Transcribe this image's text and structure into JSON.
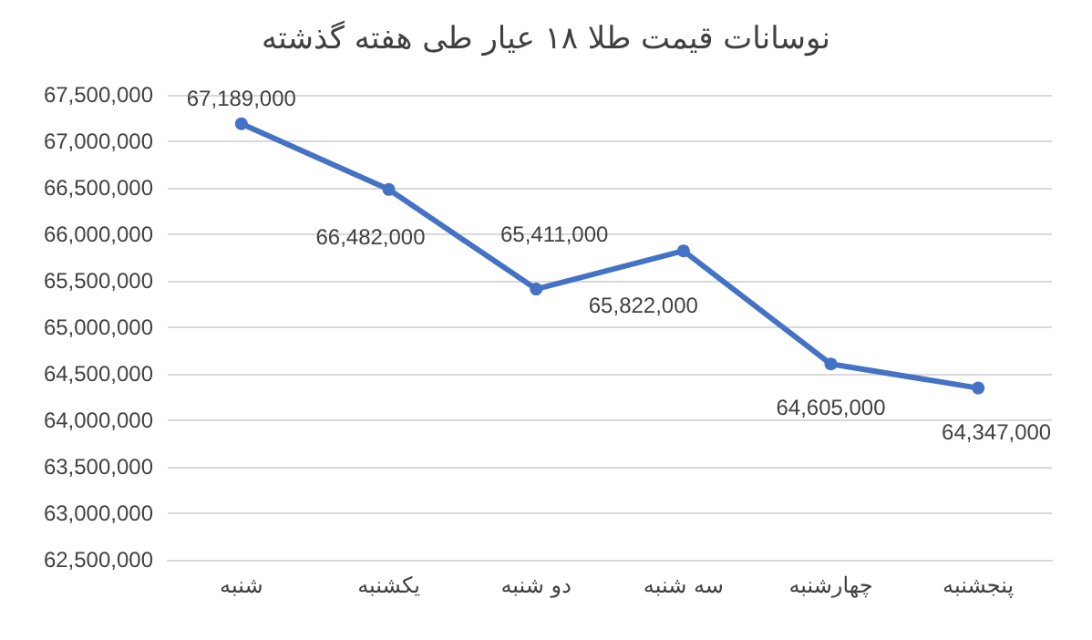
{
  "chart_data": {
    "type": "line",
    "title": "نوسانات قیمت طلا ۱۸ عیار طی هفته گذشته",
    "categories": [
      "شنبه",
      "یکشنبه",
      "دو شنبه",
      "سه شنبه",
      "چهارشنبه",
      "پنجشنبه"
    ],
    "series": [
      {
        "color": "#4472c4",
        "values": [
          67189000,
          66482000,
          65411000,
          65822000,
          64605000,
          64347000
        ],
        "value_labels": [
          "67,189,000",
          "66,482,000",
          "65,411,000",
          "65,822,000",
          "64,605,000",
          "64,347,000"
        ]
      }
    ],
    "ylim": [
      62500000,
      67500000
    ],
    "yticks": [
      {
        "value": 62500000,
        "label": "62,500,000"
      },
      {
        "value": 63000000,
        "label": "63,000,000"
      },
      {
        "value": 63500000,
        "label": "63,500,000"
      },
      {
        "value": 64000000,
        "label": "64,000,000"
      },
      {
        "value": 64500000,
        "label": "64,500,000"
      },
      {
        "value": 65000000,
        "label": "65,000,000"
      },
      {
        "value": 65500000,
        "label": "65,500,000"
      },
      {
        "value": 66000000,
        "label": "66,000,000"
      },
      {
        "value": 66500000,
        "label": "66,500,000"
      },
      {
        "value": 67000000,
        "label": "67,000,000"
      },
      {
        "value": 67500000,
        "label": "67,500,000"
      }
    ],
    "grid": "y",
    "marker": "circle",
    "line_style": "solid"
  }
}
